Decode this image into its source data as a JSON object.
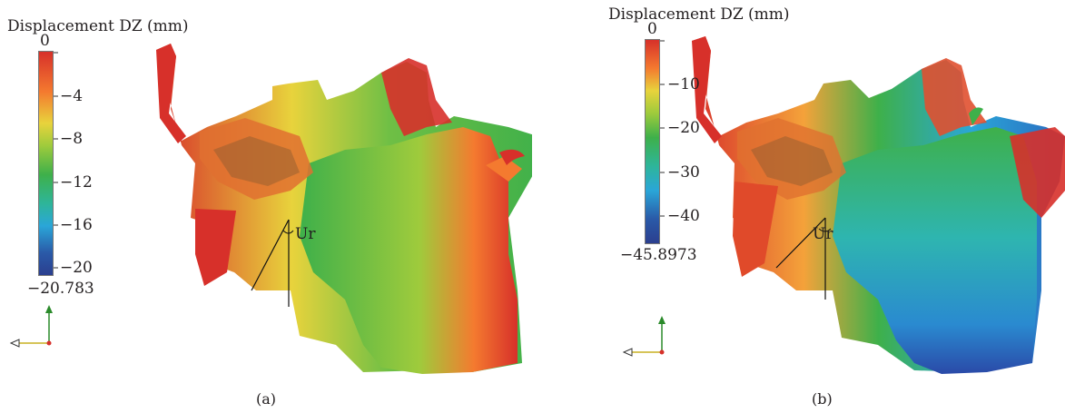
{
  "panels": [
    {
      "id": "a",
      "caption": "(a)",
      "colorbar": {
        "title": "Displacement DZ (mm)",
        "min": -20.783,
        "max": 0,
        "ticks": [
          "0",
          "−4",
          "−8",
          "−12",
          "−16",
          "−20"
        ],
        "tick_values": [
          0,
          -4,
          -8,
          -12,
          -16,
          -20
        ],
        "min_label": "−20.783"
      },
      "angle_label": "Ur"
    },
    {
      "id": "b",
      "caption": "(b)",
      "colorbar": {
        "title": "Displacement DZ (mm)",
        "min": -45.8973,
        "max": 0,
        "ticks": [
          "0",
          "−10",
          "−20",
          "−30",
          "−40"
        ],
        "tick_values": [
          0,
          -10,
          -20,
          -30,
          -40
        ],
        "min_label": "−45.8973"
      },
      "angle_label": "Ur"
    }
  ],
  "colormap": [
    "#d7302a",
    "#f47a2f",
    "#e8d33c",
    "#9fcb3c",
    "#3eb04a",
    "#2eb59a",
    "#2aa6d8",
    "#2a5aa8",
    "#2b3f8f"
  ]
}
